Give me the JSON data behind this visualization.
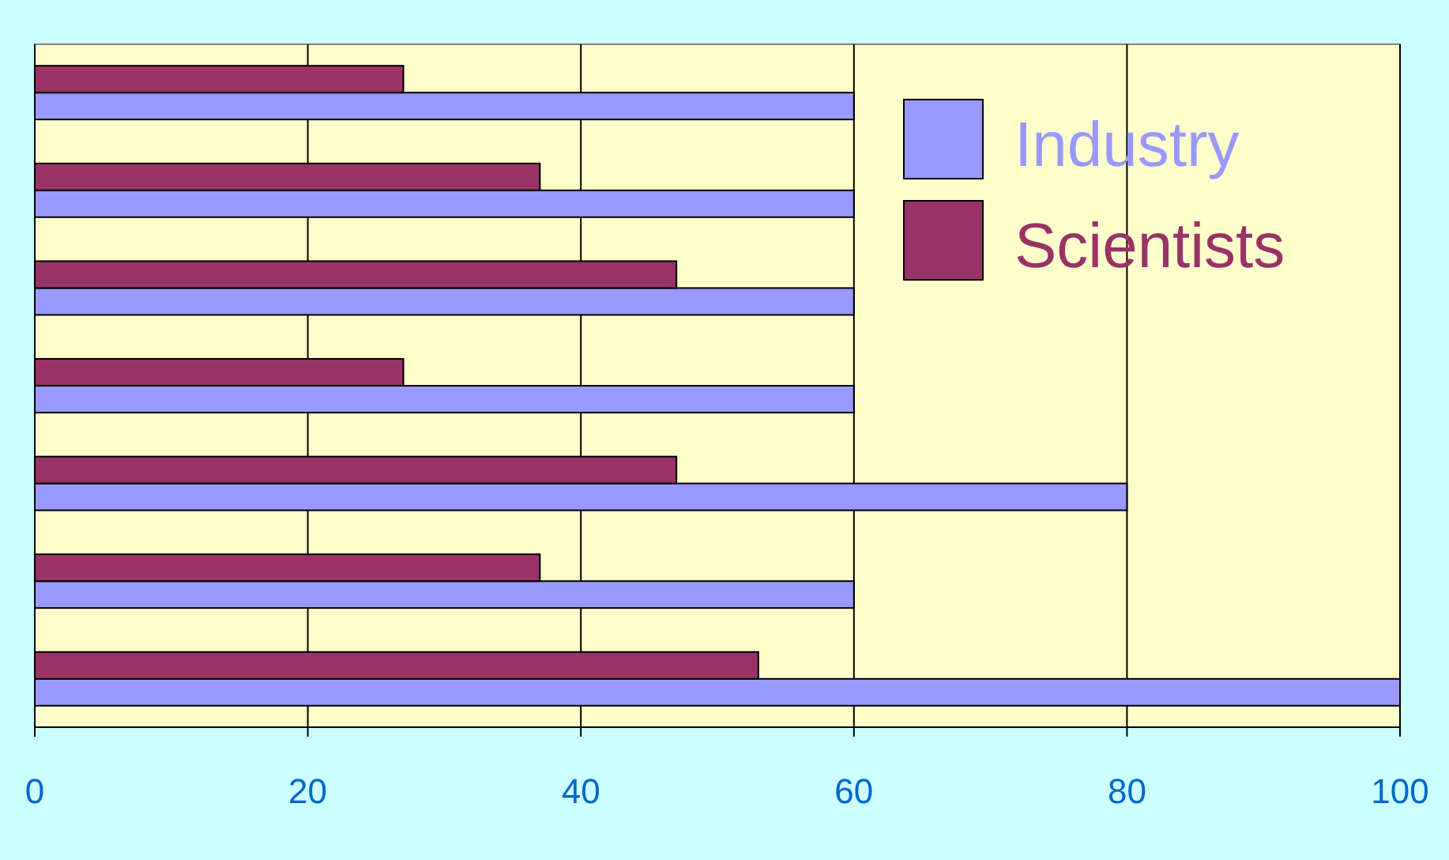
{
  "chart_data": {
    "type": "bar",
    "orientation": "horizontal",
    "categories": [
      null,
      null,
      null,
      null,
      null,
      null,
      null
    ],
    "series": [
      {
        "name": "Industry",
        "color": "#9999ff",
        "values": [
          60,
          60,
          60,
          60,
          80,
          60,
          100
        ]
      },
      {
        "name": "Scientists",
        "color": "#993366",
        "values": [
          27,
          37,
          47,
          27,
          47,
          37,
          53
        ]
      }
    ],
    "xlim": [
      0,
      100
    ],
    "xticks": [
      0,
      20,
      40,
      60,
      80,
      100
    ],
    "grid": "x",
    "legend": "top right"
  }
}
